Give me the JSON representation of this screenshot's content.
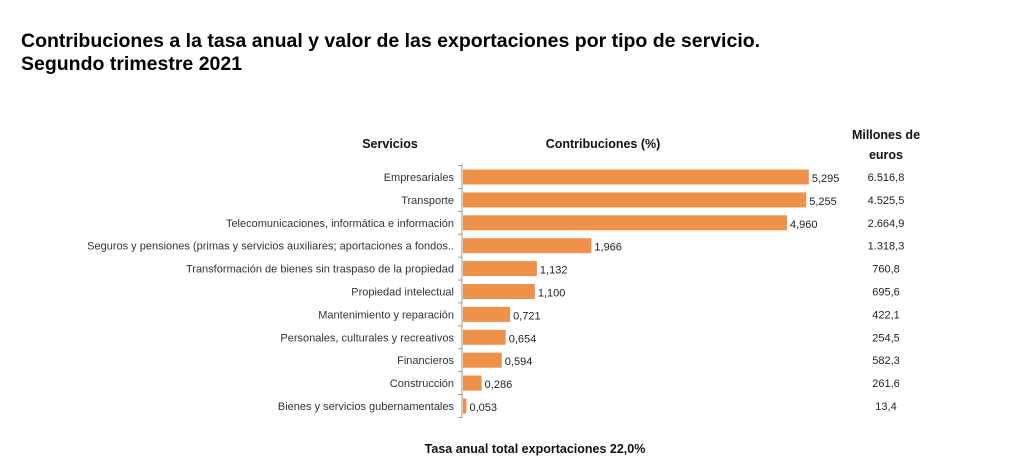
{
  "title_line1": "Contribuciones a la tasa anual y valor de las exportaciones por tipo de servicio.",
  "title_line2": "Segundo trimestre 2021",
  "headers": {
    "servicios": "Servicios",
    "contribuciones": "Contribuciones (%)",
    "millones_line1": "Millones de",
    "millones_line2": "euros"
  },
  "footer": "Tasa anual total exportaciones 22,0%",
  "colors": {
    "bar": "#f0914a",
    "axis": "#999999"
  },
  "chart_data": {
    "type": "bar",
    "orientation": "horizontal",
    "xlim": [
      0,
      5.6
    ],
    "grid": false,
    "categories": [
      "Empresariales",
      "Transporte",
      "Telecomunicaciones, informática e información",
      "Seguros y pensiones  (primas y servicios auxiliares; aportaciones a fondos..",
      "Transformación de bienes sin traspaso de la propiedad",
      "Propiedad intelectual",
      "Mantenimiento y reparación",
      "Personales, culturales y recreativos",
      "Financieros",
      "Construcción",
      "Bienes y servicios gubernamentales"
    ],
    "values": [
      5.295,
      5.255,
      4.96,
      1.966,
      1.132,
      1.1,
      0.721,
      0.654,
      0.594,
      0.286,
      0.053
    ],
    "value_labels": [
      "5,295",
      "5,255",
      "4,960",
      "1,966",
      "1,132",
      "1,100",
      "0,721",
      "0,654",
      "0,594",
      "0,286",
      "0,053"
    ],
    "millones_euros": [
      "6.516,8",
      "4.525,5",
      "2.664,9",
      "1.318,3",
      "760,8",
      "695,6",
      "422,1",
      "254,5",
      "582,3",
      "261,6",
      "13,4"
    ]
  }
}
